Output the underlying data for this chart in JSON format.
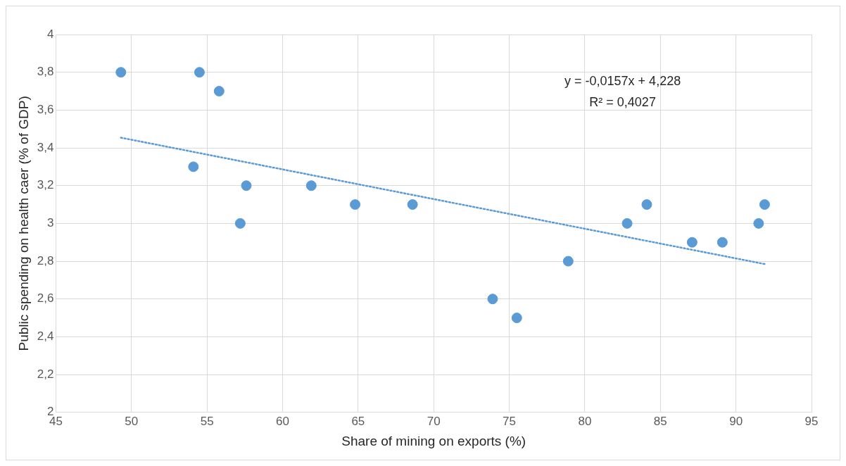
{
  "chart_data": {
    "type": "scatter",
    "xlabel": "Share of mining on exports (%)",
    "ylabel": "Public spending on health caer (% of GDP)",
    "xlim": [
      45,
      95
    ],
    "xticks": [
      45,
      50,
      55,
      60,
      65,
      70,
      75,
      80,
      85,
      90,
      95
    ],
    "ylim": [
      2,
      4
    ],
    "yticks": [
      2,
      {
        "value": 2.2,
        "label": "2,2"
      },
      {
        "value": 2.4,
        "label": "2,4"
      },
      {
        "value": 2.6,
        "label": "2,6"
      },
      {
        "value": 2.8,
        "label": "2,8"
      },
      3,
      {
        "value": 3.2,
        "label": "3,2"
      },
      {
        "value": 3.4,
        "label": "3,4"
      },
      {
        "value": 3.6,
        "label": "3,6"
      },
      {
        "value": 3.8,
        "label": "3,8"
      },
      4
    ],
    "grid": true,
    "legend": false,
    "series": [
      {
        "color": "#5b9bd5",
        "marker": "circle",
        "x": [
          49.3,
          54.5,
          55.8,
          54.1,
          57.6,
          57.2,
          61.9,
          64.8,
          68.6,
          73.9,
          75.5,
          78.9,
          82.8,
          84.1,
          87.1,
          89.1,
          91.5,
          91.9
        ],
        "values": [
          3.8,
          3.8,
          3.7,
          3.3,
          3.2,
          3.0,
          3.2,
          3.1,
          3.1,
          2.6,
          2.5,
          2.8,
          3.0,
          3.1,
          2.9,
          2.9,
          3.0,
          3.1
        ]
      },
      {
        "type": "line",
        "color": "#5b9bd5",
        "marker": "none",
        "line_style": "dotted",
        "x": [
          49.3,
          91.9
        ],
        "values": [
          3.454,
          2.785
        ]
      }
    ],
    "annotations": [
      "y = -0,0157x + 4,228",
      "R² = 0,4027"
    ]
  }
}
